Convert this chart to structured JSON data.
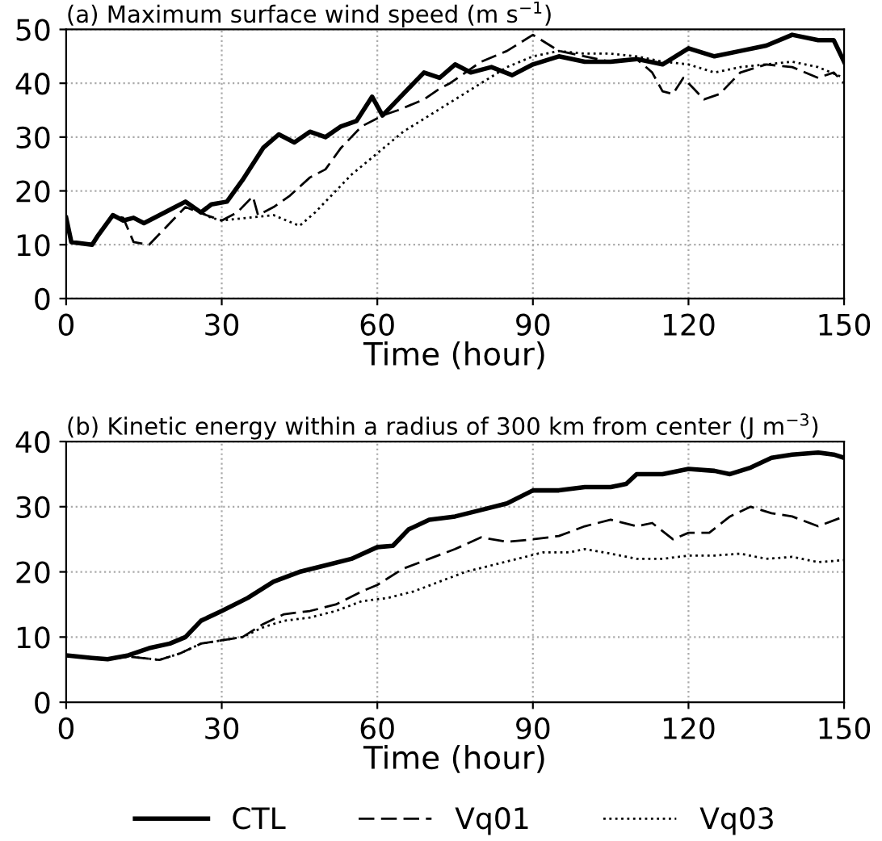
{
  "chart_data": [
    {
      "type": "line",
      "title": "(a) Maximum surface wind speed (m s$^{−1}$)",
      "xlabel": "Time (hour)",
      "xlim": [
        0,
        150
      ],
      "xticks": [
        0,
        30,
        60,
        90,
        120,
        150
      ],
      "ylim": [
        0,
        50
      ],
      "yticks": [
        0,
        10,
        20,
        30,
        40,
        50
      ],
      "grid": true,
      "series": [
        {
          "color": "#000000",
          "line_style": "solid",
          "x": [
            0,
            1,
            5,
            6,
            9,
            11,
            13,
            15,
            19,
            23,
            26,
            28,
            31,
            34,
            38,
            41,
            44,
            47,
            50,
            53,
            56,
            59,
            61,
            64,
            67,
            69,
            72,
            75,
            78,
            82,
            86,
            90,
            95,
            100,
            105,
            110,
            115,
            120,
            125,
            130,
            135,
            140,
            145,
            148,
            150
          ],
          "values": [
            15,
            10.5,
            10,
            11.5,
            15.5,
            14.5,
            15,
            14,
            16,
            18,
            16,
            17.5,
            18,
            22,
            28,
            30.5,
            29,
            31,
            30,
            32,
            33,
            37.5,
            34,
            37,
            40,
            42,
            41,
            43.5,
            42,
            43,
            41.5,
            43.5,
            45,
            44,
            44,
            44.5,
            43.5,
            46.5,
            45,
            46,
            47,
            49,
            48,
            48,
            44
          ]
        },
        {
          "color": "#000000",
          "line_style": "dashed",
          "x": [
            0,
            1,
            5,
            6,
            9,
            11,
            13,
            16,
            19,
            23,
            27,
            30,
            33,
            36,
            37,
            40,
            43,
            47,
            50,
            53,
            57,
            61,
            64,
            69,
            72,
            74,
            77,
            80,
            85,
            90,
            95,
            100,
            105,
            110,
            113,
            115,
            117,
            119,
            121,
            123,
            126,
            130,
            135,
            140,
            145,
            148,
            150
          ],
          "values": [
            15,
            10.5,
            10,
            11.5,
            15.5,
            15,
            10.5,
            10,
            13,
            17,
            15.5,
            14.5,
            16,
            19,
            15.5,
            17,
            19,
            22.5,
            24,
            28,
            32,
            34,
            35,
            37,
            39,
            40,
            42,
            44,
            46,
            49,
            46,
            45,
            44,
            44.5,
            42,
            38.5,
            38,
            41,
            39,
            37,
            38,
            42,
            43.5,
            43,
            41,
            42,
            40
          ]
        },
        {
          "color": "#000000",
          "line_style": "dotted",
          "x": [
            0,
            1,
            5,
            6,
            9,
            11,
            13,
            15,
            19,
            23,
            26,
            28,
            30,
            35,
            40,
            45,
            48,
            52,
            55,
            60,
            65,
            70,
            75,
            80,
            85,
            90,
            95,
            100,
            105,
            110,
            115,
            120,
            125,
            130,
            135,
            140,
            145,
            150
          ],
          "values": [
            15,
            10.5,
            10,
            11.5,
            15.5,
            14.5,
            15,
            14,
            16,
            18,
            16,
            15,
            14.5,
            15,
            15.5,
            13.5,
            16,
            20,
            23,
            27,
            31,
            34,
            37,
            40,
            43,
            45,
            46,
            45.5,
            45.5,
            45,
            44,
            43.5,
            42,
            43,
            43.5,
            44,
            43,
            41
          ]
        }
      ]
    },
    {
      "type": "line",
      "title": "(b) Kinetic energy within a radius of 300 km from center (J m$^{−3}$)",
      "xlabel": "Time (hour)",
      "xlim": [
        0,
        150
      ],
      "xticks": [
        0,
        30,
        60,
        90,
        120,
        150
      ],
      "ylim": [
        0,
        40
      ],
      "yticks": [
        0,
        10,
        20,
        30,
        40
      ],
      "grid": true,
      "legend": "bottom",
      "series": [
        {
          "name": "CTL",
          "color": "#000000",
          "line_style": "solid",
          "x": [
            0,
            5,
            8,
            12,
            16,
            20,
            23,
            26,
            30,
            35,
            40,
            45,
            50,
            55,
            60,
            63,
            66,
            70,
            75,
            80,
            85,
            90,
            95,
            100,
            105,
            108,
            110,
            115,
            120,
            125,
            128,
            132,
            136,
            140,
            145,
            148,
            150
          ],
          "values": [
            7.2,
            6.8,
            6.6,
            7.2,
            8.3,
            9,
            10,
            12.5,
            14,
            16,
            18.5,
            20,
            21,
            22,
            23.8,
            24,
            26.5,
            28,
            28.5,
            29.5,
            30.5,
            32.5,
            32.5,
            33,
            33,
            33.5,
            35,
            35,
            35.8,
            35.5,
            35,
            36,
            37.5,
            38,
            38.3,
            38,
            37.5
          ]
        },
        {
          "name": "Vq01",
          "color": "#000000",
          "line_style": "dashed",
          "x": [
            0,
            8,
            12,
            18,
            22,
            26,
            30,
            34,
            38,
            42,
            47,
            52,
            57,
            60,
            65,
            70,
            75,
            80,
            85,
            90,
            95,
            100,
            105,
            110,
            113,
            117,
            120,
            124,
            128,
            132,
            136,
            140,
            145,
            150
          ],
          "values": [
            7.2,
            6.6,
            7,
            6.5,
            7.5,
            9,
            9.5,
            10,
            12,
            13.5,
            14,
            15,
            17,
            18,
            20.5,
            22,
            23.5,
            25.3,
            24.6,
            25,
            25.5,
            27,
            28,
            27,
            27.5,
            25,
            26,
            26,
            28.5,
            30,
            29,
            28.5,
            27,
            28.5
          ]
        },
        {
          "name": "Vq03",
          "color": "#000000",
          "line_style": "dotted",
          "x": [
            0,
            8,
            12,
            18,
            22,
            26,
            30,
            34,
            38,
            42,
            47,
            52,
            57,
            62,
            67,
            72,
            77,
            82,
            87,
            92,
            97,
            100,
            105,
            110,
            115,
            120,
            125,
            130,
            135,
            140,
            145,
            150
          ],
          "values": [
            7.2,
            6.6,
            7,
            6.5,
            7.5,
            9,
            9.5,
            10,
            11.5,
            12.5,
            13,
            14,
            15.5,
            16,
            17,
            18.5,
            20,
            21,
            22,
            23,
            23,
            23.5,
            22.8,
            22,
            22,
            22.5,
            22.5,
            22.8,
            22,
            22.3,
            21.5,
            21.8
          ]
        }
      ]
    }
  ]
}
